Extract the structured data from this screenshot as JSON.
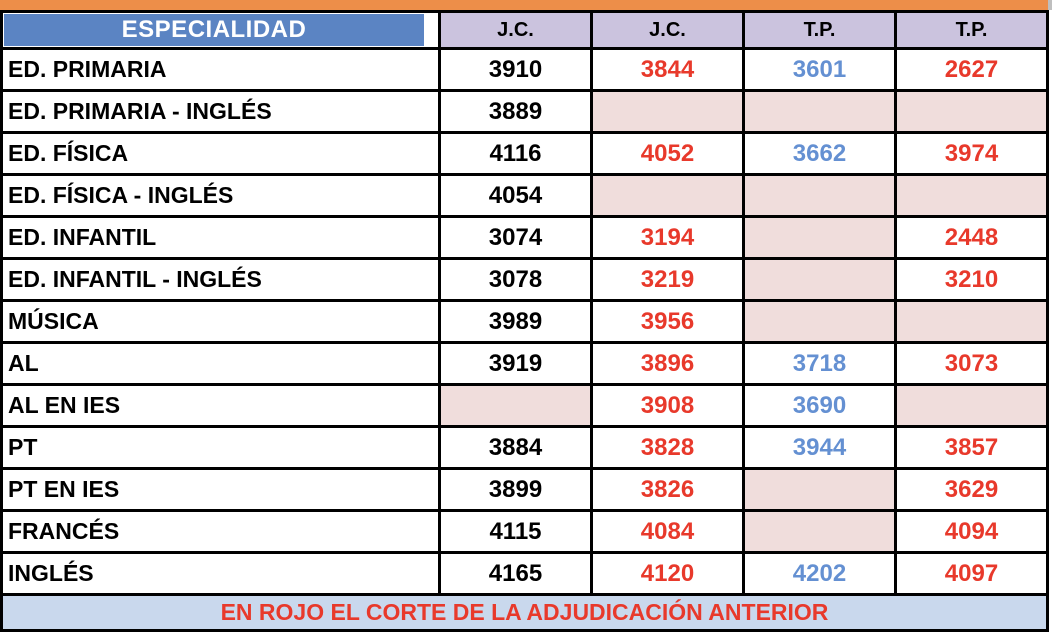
{
  "colors": {
    "accent_orange": "#ED8E49",
    "header_blue": "#5B84C3",
    "header_lavender": "#CBC3DE",
    "empty_pink": "#F0DDDC",
    "footer_blue": "#C9D8ED",
    "cut_red": "#E8392B",
    "value_blue": "#6490D2",
    "grid_stub_gray": "#BFBFBF"
  },
  "table": {
    "header": {
      "specialty_label": "ESPECIALIDAD",
      "value_columns": [
        "J.C.",
        "J.C.",
        "T.P.",
        "T.P."
      ]
    },
    "rows": [
      {
        "name": "ED. PRIMARIA",
        "cells": [
          {
            "value": "3910",
            "style": "black"
          },
          {
            "value": "3844",
            "style": "red"
          },
          {
            "value": "3601",
            "style": "blue"
          },
          {
            "value": "2627",
            "style": "red"
          }
        ]
      },
      {
        "name": "ED. PRIMARIA - INGLÉS",
        "cells": [
          {
            "value": "3889",
            "style": "black"
          },
          {
            "value": "",
            "style": "empty"
          },
          {
            "value": "",
            "style": "empty"
          },
          {
            "value": "",
            "style": "empty"
          }
        ]
      },
      {
        "name": "ED. FÍSICA",
        "cells": [
          {
            "value": "4116",
            "style": "black"
          },
          {
            "value": "4052",
            "style": "red"
          },
          {
            "value": "3662",
            "style": "blue"
          },
          {
            "value": "3974",
            "style": "red"
          }
        ]
      },
      {
        "name": "ED. FÍSICA - INGLÉS",
        "cells": [
          {
            "value": "4054",
            "style": "black"
          },
          {
            "value": "",
            "style": "empty"
          },
          {
            "value": "",
            "style": "empty"
          },
          {
            "value": "",
            "style": "empty"
          }
        ]
      },
      {
        "name": "ED. INFANTIL",
        "cells": [
          {
            "value": "3074",
            "style": "black"
          },
          {
            "value": "3194",
            "style": "red"
          },
          {
            "value": "",
            "style": "empty"
          },
          {
            "value": "2448",
            "style": "red"
          }
        ]
      },
      {
        "name": "ED. INFANTIL - INGLÉS",
        "cells": [
          {
            "value": "3078",
            "style": "black"
          },
          {
            "value": "3219",
            "style": "red"
          },
          {
            "value": "",
            "style": "empty"
          },
          {
            "value": "3210",
            "style": "red"
          }
        ]
      },
      {
        "name": "MÚSICA",
        "cells": [
          {
            "value": "3989",
            "style": "black"
          },
          {
            "value": "3956",
            "style": "red"
          },
          {
            "value": "",
            "style": "empty"
          },
          {
            "value": "",
            "style": "empty"
          }
        ]
      },
      {
        "name": "AL",
        "cells": [
          {
            "value": "3919",
            "style": "black"
          },
          {
            "value": "3896",
            "style": "red"
          },
          {
            "value": "3718",
            "style": "blue"
          },
          {
            "value": "3073",
            "style": "red"
          }
        ]
      },
      {
        "name": "AL EN IES",
        "cells": [
          {
            "value": "",
            "style": "empty"
          },
          {
            "value": "3908",
            "style": "red"
          },
          {
            "value": "3690",
            "style": "blue"
          },
          {
            "value": "",
            "style": "empty"
          }
        ]
      },
      {
        "name": "PT",
        "cells": [
          {
            "value": "3884",
            "style": "black"
          },
          {
            "value": "3828",
            "style": "red"
          },
          {
            "value": "3944",
            "style": "blue"
          },
          {
            "value": "3857",
            "style": "red"
          }
        ]
      },
      {
        "name": "PT EN IES",
        "cells": [
          {
            "value": "3899",
            "style": "black"
          },
          {
            "value": "3826",
            "style": "red"
          },
          {
            "value": "",
            "style": "empty"
          },
          {
            "value": "3629",
            "style": "red"
          }
        ]
      },
      {
        "name": "FRANCÉS",
        "cells": [
          {
            "value": "4115",
            "style": "black"
          },
          {
            "value": "4084",
            "style": "red"
          },
          {
            "value": "",
            "style": "empty"
          },
          {
            "value": "4094",
            "style": "red"
          }
        ]
      },
      {
        "name": "INGLÉS",
        "cells": [
          {
            "value": "4165",
            "style": "black"
          },
          {
            "value": "4120",
            "style": "red"
          },
          {
            "value": "4202",
            "style": "blue"
          },
          {
            "value": "4097",
            "style": "red"
          }
        ]
      }
    ],
    "footer_note": "EN ROJO EL CORTE DE LA ADJUDICACIÓN ANTERIOR"
  }
}
